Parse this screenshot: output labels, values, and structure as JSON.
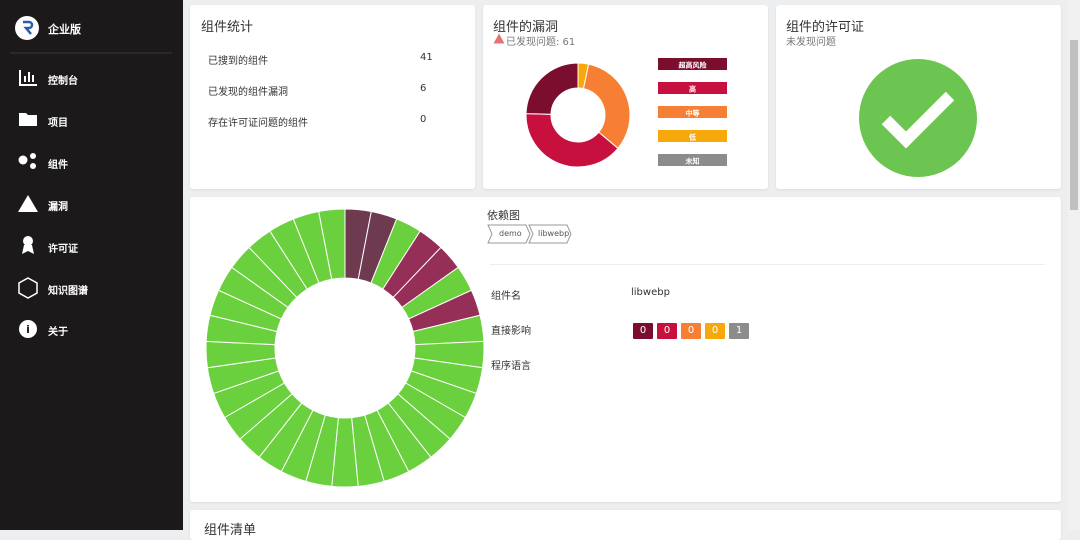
{
  "sidebar": {
    "brand": "企业版",
    "menu": [
      "控制台",
      "项目",
      "组件",
      "漏洞",
      "许可证",
      "知识图谱",
      "关于"
    ]
  },
  "stats": {
    "title": "组件统计",
    "rows": [
      [
        "已搜到的组件",
        41
      ],
      [
        "已发现的组件漏洞",
        6
      ],
      [
        "存在许可证问题的组件",
        0
      ]
    ]
  },
  "vulns": {
    "title": "组件的漏洞",
    "subtitle": "已发现问题: 61",
    "chart_data": {
      "type": "pie",
      "categories": [
        "超高风险",
        "高",
        "中等",
        "低",
        "未知"
      ],
      "values": [
        15,
        24,
        20,
        2,
        0
      ],
      "colors": [
        "#7b0d2e",
        "#c8103e",
        "#f77f34",
        "#f7a90c",
        "#8c8c8c"
      ]
    }
  },
  "license": {
    "title": "组件的许可证",
    "subtitle": "未发现问题"
  },
  "graph": {
    "title": "依赖图",
    "breadcrumb": [
      "demo",
      "libwebp"
    ],
    "ring_colors": [
      "#6d3a4f",
      "#6d3a4f",
      "#6ad03d",
      "#952f57",
      "#952f57",
      "#6ad03d",
      "#952f57",
      "#6ad03d",
      "#6ad03d",
      "#6ad03d",
      "#6ad03d",
      "#6ad03d",
      "#6ad03d",
      "#6ad03d",
      "#6ad03d",
      "#6ad03d",
      "#6ad03d",
      "#6ad03d",
      "#6ad03d",
      "#6ad03d",
      "#6ad03d",
      "#6ad03d",
      "#6ad03d",
      "#6ad03d",
      "#6ad03d",
      "#6ad03d",
      "#6ad03d",
      "#6ad03d",
      "#6ad03d",
      "#6ad03d",
      "#6ad03d",
      "#6ad03d",
      "#6ad03d"
    ],
    "name_label": "组件名",
    "name_value": "libwebp",
    "impact_label": "直接影响",
    "impact_values": [
      0,
      0,
      0,
      0,
      1
    ],
    "impact_colors": [
      "#7b0d2e",
      "#c8103e",
      "#f77f34",
      "#f7a90c",
      "#8c8c8c"
    ],
    "language_label": "程序语言"
  },
  "list_title": "组件清单"
}
